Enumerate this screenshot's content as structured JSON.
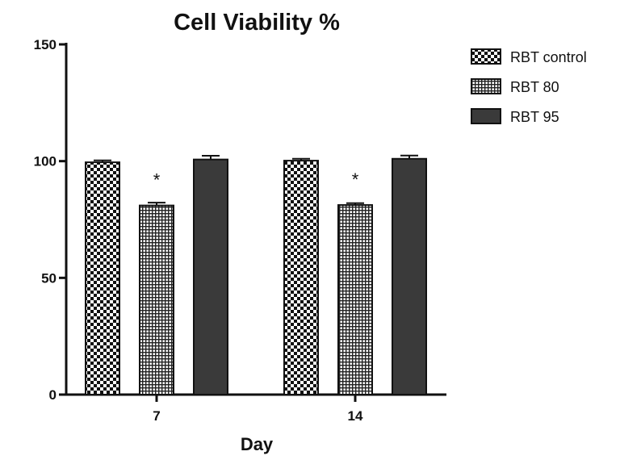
{
  "chart_data": {
    "type": "bar",
    "title": "Cell Viability %",
    "xlabel": "Day",
    "ylabel": "",
    "ylim": [
      0,
      150
    ],
    "yticks": [
      "0",
      "50",
      "100",
      "150"
    ],
    "categories": [
      "7",
      "14"
    ],
    "grid": false,
    "legend_position": "top-right",
    "series": [
      {
        "name": "RBT control",
        "pattern": "checker",
        "values": [
          99.5,
          100.2
        ],
        "errors": [
          0.8,
          0.8
        ],
        "significance": [
          "",
          ""
        ]
      },
      {
        "name": "RBT 80",
        "pattern": "grid",
        "values": [
          81,
          81.2
        ],
        "errors": [
          1.2,
          0.8
        ],
        "significance": [
          "*",
          "*"
        ]
      },
      {
        "name": "RBT 95",
        "pattern": "solid",
        "values": [
          100.7,
          101
        ],
        "errors": [
          1.6,
          1.4
        ],
        "significance": [
          "",
          ""
        ]
      }
    ],
    "colors": {
      "axis": "#111111",
      "solid": "#3a3a3a",
      "pattern_dark": "#111111",
      "pattern_light": "#ffffff"
    }
  }
}
